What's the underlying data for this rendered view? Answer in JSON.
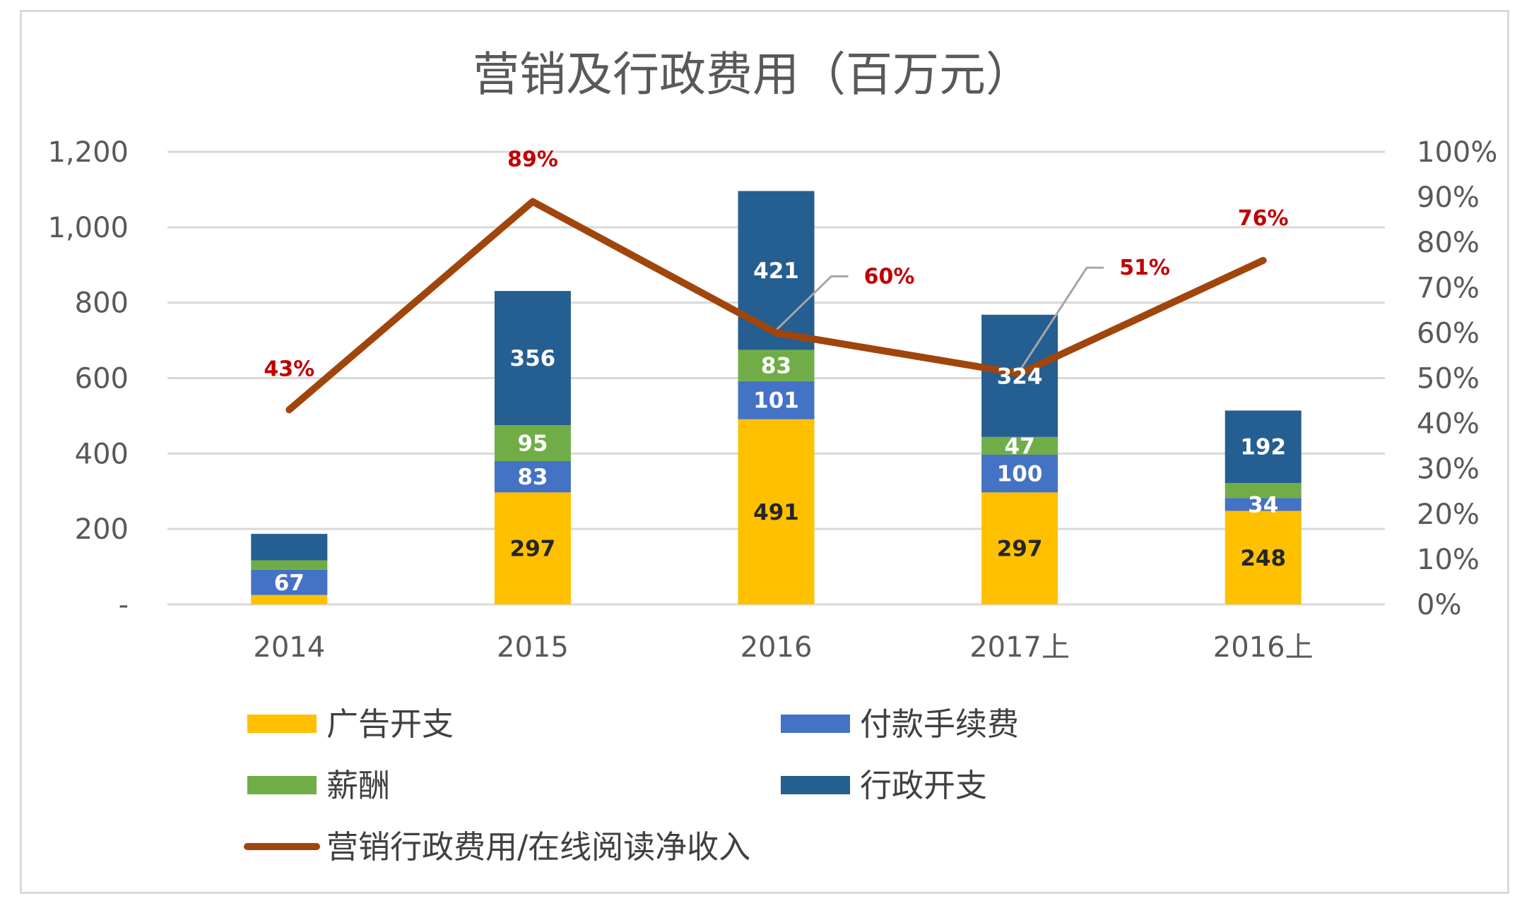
{
  "chart_data": {
    "type": "bar",
    "stacked": true,
    "title": "营销及行政费用（百万元）",
    "categories": [
      "2014",
      "2015",
      "2016",
      "2017上",
      "2016上"
    ],
    "y_left": {
      "range": [
        0,
        1200
      ],
      "ticks": [
        0,
        200,
        400,
        600,
        800,
        1000,
        1200
      ],
      "tick_labels": [
        "-",
        "200",
        "400",
        "600",
        "800",
        "1,000",
        "1,200"
      ]
    },
    "y_right": {
      "range": [
        0,
        1
      ],
      "ticks": [
        0,
        0.1,
        0.2,
        0.3,
        0.4,
        0.5,
        0.6,
        0.7,
        0.8,
        0.9,
        1.0
      ],
      "tick_labels": [
        "0%",
        "10%",
        "20%",
        "30%",
        "40%",
        "50%",
        "60%",
        "70%",
        "80%",
        "90%",
        "100%"
      ]
    },
    "series": [
      {
        "name": "广告开支",
        "color": "#ffc000",
        "label_color": "#262626",
        "values": [
          25,
          297,
          491,
          297,
          248
        ],
        "labels": [
          "",
          "297",
          "491",
          "297",
          "248"
        ]
      },
      {
        "name": "付款手续费",
        "color": "#4472c4",
        "label_color": "#ffffff",
        "values": [
          67,
          83,
          101,
          100,
          34
        ],
        "labels": [
          "67",
          "83",
          "101",
          "100",
          "34"
        ]
      },
      {
        "name": "薪酬",
        "color": "#70ad47",
        "label_color": "#ffffff",
        "values": [
          25,
          95,
          83,
          47,
          40
        ],
        "labels": [
          "",
          "95",
          "83",
          "47",
          ""
        ]
      },
      {
        "name": "行政开支",
        "color": "#255e91",
        "label_color": "#ffffff",
        "values": [
          70,
          356,
          421,
          324,
          192
        ],
        "labels": [
          "",
          "356",
          "421",
          "324",
          "192"
        ]
      }
    ],
    "line": {
      "name": "营销行政费用/在线阅读净收入",
      "color": "#a0450c",
      "axis": "right",
      "values": [
        0.43,
        0.89,
        0.6,
        0.51,
        0.76
      ],
      "labels": [
        "43%",
        "89%",
        "60%",
        "51%",
        "76%"
      ],
      "label_color": "#c00000"
    },
    "legend_position": "bottom",
    "grid": true
  },
  "colors": {
    "grid": "#d9d9d9",
    "text": "#595959"
  }
}
